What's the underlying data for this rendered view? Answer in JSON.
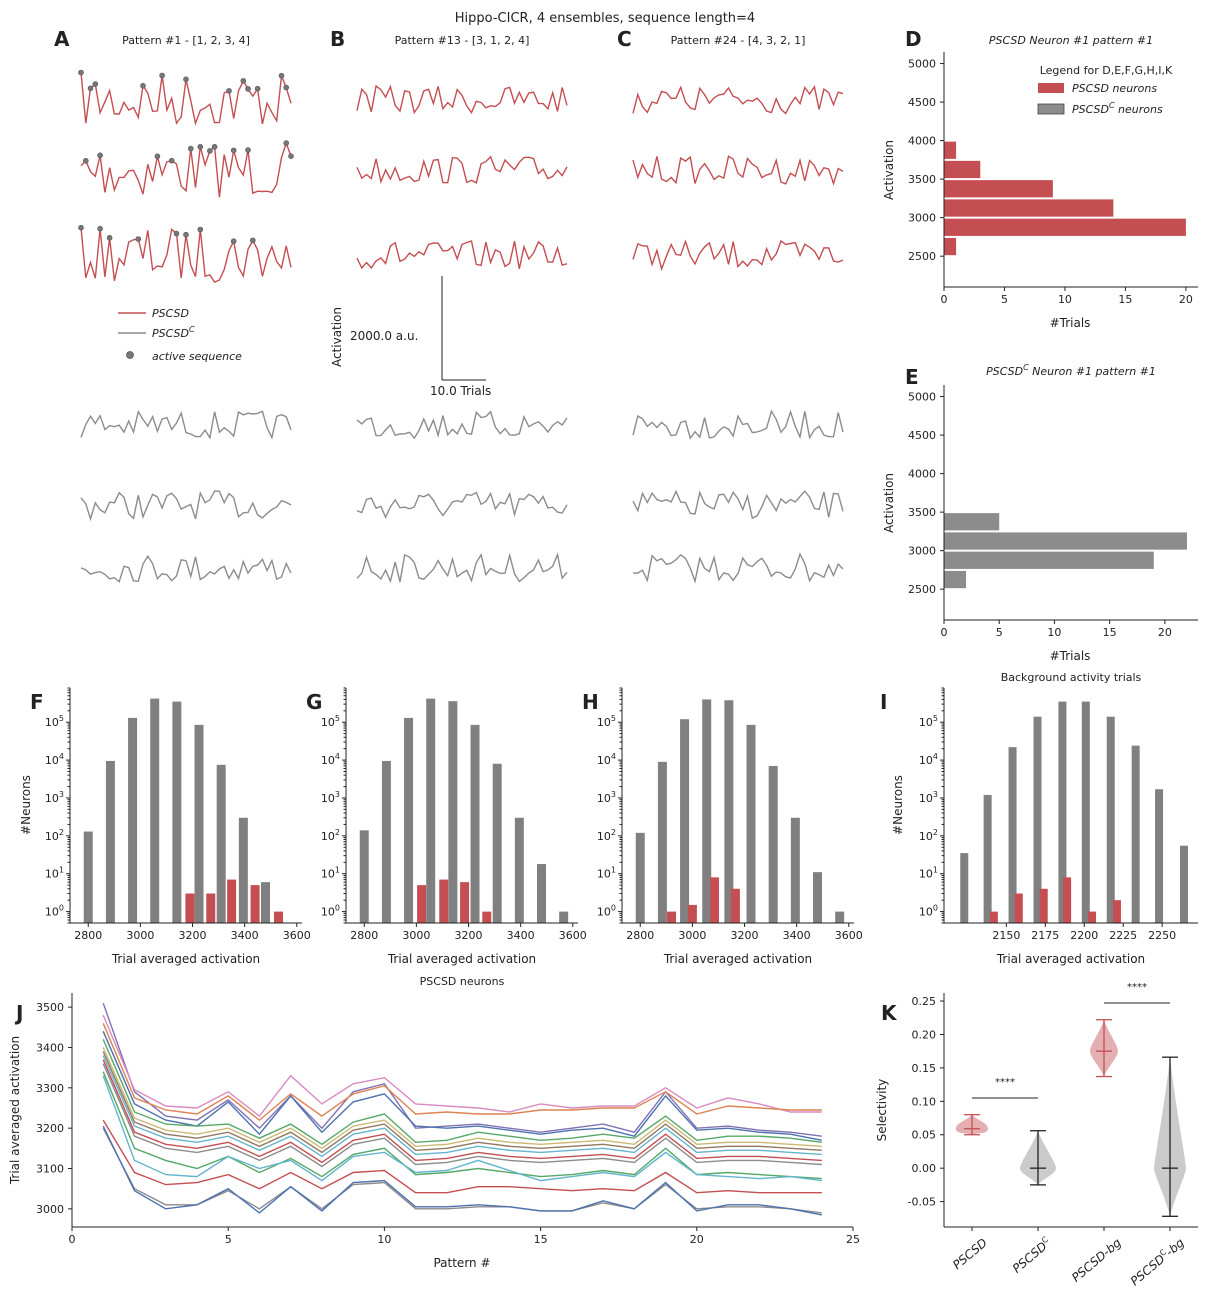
{
  "figure": {
    "title": "Hippo-CICR, 4 ensembles, sequence length=4",
    "panel_letters": [
      "A",
      "B",
      "C",
      "D",
      "E",
      "F",
      "G",
      "H",
      "I",
      "J",
      "K"
    ],
    "colors": {
      "pscsd": "#c44e52",
      "pscsdc": "#8c8c8c",
      "active_marker": "#777777"
    }
  },
  "panelA": {
    "title": "Pattern #1 - [1, 2, 3, 4]",
    "legend": [
      {
        "label": "PSCSD",
        "sup": "",
        "kind": "line",
        "color": "#c44e52"
      },
      {
        "label": "PSCSD",
        "sup": "C",
        "kind": "line",
        "color": "#8c8c8c"
      },
      {
        "label": "active sequence",
        "sup": "",
        "kind": "dot",
        "color": "#777777"
      }
    ]
  },
  "panelB": {
    "title": "Pattern #13 - [3, 1, 2, 4]",
    "ylabel": "Activation",
    "scale_y": "2000.0 a.u.",
    "scale_x": "10.0 Trials"
  },
  "panelC": {
    "title": "Pattern #24 - [4, 3, 2, 1]"
  },
  "panelD": {
    "title": "PSCSD Neuron #1 pattern #1",
    "xlabel": "#Trials",
    "ylabel": "Activation",
    "legend_title": "Legend for D,E,F,G,H,I,K",
    "legend": [
      {
        "label": "PSCSD neurons",
        "sup": "",
        "color": "#c44e52"
      },
      {
        "label": "PSCSD",
        "sup": "C",
        "suffix": " neurons",
        "color": "#8c8c8c"
      }
    ]
  },
  "panelE": {
    "title_prefix": "PSCSD",
    "title_sup": "C",
    "title_suffix": " Neuron #1 pattern #1",
    "xlabel": "#Trials",
    "ylabel": "Activation"
  },
  "panelFGH": {
    "xlabel": "Trial averaged activation",
    "ylabel": "#Neurons"
  },
  "panelI": {
    "title": "Background activity trials",
    "xlabel": "Trial averaged activation",
    "ylabel": "#Neurons"
  },
  "panelJ": {
    "title": "PSCSD neurons",
    "xlabel": "Pattern #",
    "ylabel": "Trial averaged activation"
  },
  "panelK": {
    "ylabel": "Selectivity",
    "categories": [
      {
        "label": "PSCSD",
        "sup": ""
      },
      {
        "label": "PSCSD",
        "sup": "C"
      },
      {
        "label": "PSCSD-bg",
        "sup": ""
      },
      {
        "label": "PSCSD",
        "sup": "C",
        "suffix": "-bg"
      }
    ],
    "significance": [
      "****",
      "****"
    ]
  },
  "chart_data": [
    {
      "panel": "D",
      "type": "bar",
      "orientation": "horizontal",
      "title": "PSCSD Neuron #1 pattern #1",
      "xlabel": "#Trials",
      "ylabel": "Activation",
      "xlim": [
        0,
        21
      ],
      "ylim": [
        2100,
        5150
      ],
      "xticks": [
        0,
        5,
        10,
        15,
        20
      ],
      "yticks": [
        2500,
        3000,
        3500,
        4000,
        4500,
        5000
      ],
      "bins": [
        [
          2500,
          2750
        ],
        [
          2750,
          3000
        ],
        [
          3000,
          3250
        ],
        [
          3250,
          3500
        ],
        [
          3500,
          3750
        ],
        [
          3750,
          4000
        ]
      ],
      "counts": [
        1,
        20,
        14,
        9,
        3,
        1
      ],
      "series_name": "PSCSD neurons",
      "color": "#c44e52"
    },
    {
      "panel": "E",
      "type": "bar",
      "orientation": "horizontal",
      "title": "PSCSDC Neuron #1 pattern #1",
      "xlabel": "#Trials",
      "ylabel": "Activation",
      "xlim": [
        0,
        23
      ],
      "ylim": [
        2100,
        5150
      ],
      "xticks": [
        0,
        5,
        10,
        15,
        20
      ],
      "yticks": [
        2500,
        3000,
        3500,
        4000,
        4500,
        5000
      ],
      "bins": [
        [
          2500,
          2750
        ],
        [
          2750,
          3000
        ],
        [
          3000,
          3250
        ],
        [
          3250,
          3500
        ]
      ],
      "counts": [
        2,
        19,
        22,
        5
      ],
      "color": "#8c8c8c"
    },
    {
      "panel": "F",
      "type": "bar",
      "scale_y": "log",
      "xlabel": "Trial averaged activation",
      "ylabel": "#Neurons",
      "xlim": [
        2730,
        3620
      ],
      "ylim": [
        0.5,
        800000
      ],
      "xticks": [
        2800,
        3000,
        3200,
        3400,
        3600
      ],
      "gray": {
        "x": [
          2800,
          2885,
          2970,
          3055,
          3140,
          3225,
          3310,
          3395,
          3480
        ],
        "values": [
          130,
          9500,
          130000,
          420000,
          350000,
          85000,
          7500,
          300,
          6
        ]
      },
      "red": {
        "x": [
          3190,
          3270,
          3350,
          3440,
          3530
        ],
        "values": [
          3,
          3,
          7,
          5,
          1
        ]
      }
    },
    {
      "panel": "G",
      "type": "bar",
      "scale_y": "log",
      "xlabel": "Trial averaged activation",
      "ylabel": "#Neurons",
      "xlim": [
        2730,
        3620
      ],
      "ylim": [
        0.5,
        800000
      ],
      "xticks": [
        2800,
        3000,
        3200,
        3400,
        3600
      ],
      "gray": {
        "x": [
          2800,
          2885,
          2970,
          3055,
          3140,
          3225,
          3310,
          3395,
          3480,
          3565
        ],
        "values": [
          140,
          9500,
          130000,
          420000,
          360000,
          85000,
          8000,
          300,
          18,
          1
        ]
      },
      "red": {
        "x": [
          3020,
          3105,
          3185,
          3270
        ],
        "values": [
          5,
          7,
          6,
          1
        ]
      }
    },
    {
      "panel": "H",
      "type": "bar",
      "scale_y": "log",
      "xlabel": "Trial averaged activation",
      "ylabel": "#Neurons",
      "xlim": [
        2730,
        3620
      ],
      "ylim": [
        0.5,
        800000
      ],
      "xticks": [
        2800,
        3000,
        3200,
        3400,
        3600
      ],
      "gray": {
        "x": [
          2800,
          2885,
          2970,
          3055,
          3140,
          3225,
          3310,
          3395,
          3480,
          3565
        ],
        "values": [
          120,
          9000,
          120000,
          400000,
          380000,
          85000,
          7000,
          300,
          11,
          1
        ]
      },
      "red": {
        "x": [
          2920,
          3000,
          3085,
          3165
        ],
        "values": [
          1,
          1.5,
          8,
          4
        ]
      }
    },
    {
      "panel": "I",
      "type": "bar",
      "scale_y": "log",
      "title": "Background activity trials",
      "xlabel": "Trial averaged activation",
      "ylabel": "#Neurons",
      "xlim": [
        2110,
        2273
      ],
      "ylim": [
        0.5,
        800000
      ],
      "xticks": [
        2150,
        2175,
        2200,
        2225,
        2250
      ],
      "gray": {
        "x": [
          2123,
          2138,
          2154,
          2170,
          2186,
          2201,
          2217,
          2233,
          2248,
          2264
        ],
        "values": [
          35,
          1200,
          22000,
          140000,
          350000,
          350000,
          140000,
          24000,
          1700,
          55
        ]
      },
      "red": {
        "x": [
          2142,
          2158,
          2174,
          2189,
          2205,
          2221
        ],
        "values": [
          1,
          3,
          4,
          8,
          1,
          2
        ]
      }
    },
    {
      "panel": "J",
      "type": "line",
      "title": "PSCSD neurons",
      "xlabel": "Pattern #",
      "ylabel": "Trial averaged activation",
      "xlim": [
        0,
        25
      ],
      "ylim": [
        2955,
        3535
      ],
      "xticks": [
        0,
        5,
        10,
        15,
        20,
        25
      ],
      "yticks": [
        3000,
        3100,
        3200,
        3300,
        3400,
        3500
      ],
      "x": [
        1,
        2,
        3,
        4,
        5,
        6,
        7,
        8,
        9,
        10,
        11,
        12,
        13,
        14,
        15,
        16,
        17,
        18,
        19,
        20,
        21,
        22,
        23,
        24
      ],
      "series": [
        {
          "color": "#8172b3",
          "values": [
            3510,
            3290,
            3230,
            3220,
            3270,
            3200,
            3280,
            3200,
            3290,
            3310,
            3200,
            3205,
            3210,
            3200,
            3190,
            3200,
            3210,
            3190,
            3290,
            3200,
            3205,
            3195,
            3190,
            3180
          ]
        },
        {
          "color": "#da8bc3",
          "values": [
            3480,
            3295,
            3255,
            3250,
            3290,
            3230,
            3330,
            3260,
            3310,
            3325,
            3260,
            3255,
            3250,
            3240,
            3260,
            3250,
            3255,
            3255,
            3300,
            3250,
            3275,
            3260,
            3240,
            3240
          ]
        },
        {
          "color": "#dd8452",
          "values": [
            3460,
            3275,
            3245,
            3235,
            3280,
            3220,
            3285,
            3230,
            3285,
            3305,
            3235,
            3240,
            3235,
            3235,
            3245,
            3245,
            3250,
            3250,
            3290,
            3235,
            3255,
            3250,
            3245,
            3245
          ]
        },
        {
          "color": "#4c72b0",
          "values": [
            3440,
            3260,
            3220,
            3205,
            3265,
            3185,
            3280,
            3190,
            3265,
            3285,
            3205,
            3200,
            3205,
            3195,
            3185,
            3195,
            3200,
            3180,
            3280,
            3195,
            3200,
            3190,
            3185,
            3170
          ]
        },
        {
          "color": "#55a868",
          "values": [
            3420,
            3240,
            3210,
            3205,
            3210,
            3175,
            3210,
            3160,
            3215,
            3235,
            3165,
            3170,
            3190,
            3180,
            3170,
            3175,
            3185,
            3175,
            3230,
            3170,
            3180,
            3180,
            3175,
            3165
          ]
        },
        {
          "color": "#ccb974",
          "values": [
            3400,
            3225,
            3195,
            3185,
            3200,
            3165,
            3200,
            3150,
            3205,
            3220,
            3155,
            3160,
            3175,
            3165,
            3160,
            3165,
            3170,
            3160,
            3220,
            3160,
            3165,
            3165,
            3160,
            3155
          ]
        },
        {
          "color": "#937860",
          "values": [
            3390,
            3215,
            3185,
            3175,
            3190,
            3155,
            3190,
            3140,
            3195,
            3210,
            3145,
            3150,
            3165,
            3155,
            3150,
            3155,
            3160,
            3150,
            3210,
            3150,
            3155,
            3155,
            3150,
            3145
          ]
        },
        {
          "color": "#64b5cd",
          "values": [
            3380,
            3205,
            3175,
            3165,
            3180,
            3145,
            3180,
            3130,
            3185,
            3200,
            3135,
            3140,
            3155,
            3145,
            3140,
            3145,
            3150,
            3140,
            3200,
            3140,
            3145,
            3145,
            3140,
            3135
          ]
        },
        {
          "color": "#c44e52",
          "values": [
            3370,
            3190,
            3160,
            3150,
            3165,
            3130,
            3165,
            3115,
            3170,
            3185,
            3120,
            3125,
            3140,
            3130,
            3125,
            3130,
            3135,
            3125,
            3185,
            3125,
            3130,
            3130,
            3125,
            3120
          ]
        },
        {
          "color": "#8c8c8c",
          "values": [
            3360,
            3180,
            3150,
            3140,
            3155,
            3120,
            3155,
            3105,
            3160,
            3175,
            3110,
            3115,
            3130,
            3120,
            3115,
            3120,
            3125,
            3115,
            3175,
            3115,
            3120,
            3120,
            3115,
            3110
          ]
        },
        {
          "color": "#55a868",
          "values": [
            3340,
            3150,
            3120,
            3100,
            3130,
            3090,
            3125,
            3080,
            3135,
            3150,
            3085,
            3090,
            3100,
            3090,
            3080,
            3085,
            3095,
            3085,
            3150,
            3085,
            3090,
            3085,
            3080,
            3075
          ]
        },
        {
          "color": "#64b5cd",
          "values": [
            3330,
            3120,
            3085,
            3080,
            3130,
            3100,
            3120,
            3070,
            3130,
            3140,
            3090,
            3095,
            3120,
            3095,
            3070,
            3080,
            3090,
            3080,
            3140,
            3085,
            3080,
            3075,
            3080,
            3070
          ]
        },
        {
          "color": "#c44e52",
          "values": [
            3220,
            3090,
            3060,
            3065,
            3085,
            3050,
            3090,
            3050,
            3090,
            3095,
            3040,
            3040,
            3055,
            3055,
            3050,
            3045,
            3050,
            3045,
            3090,
            3040,
            3045,
            3040,
            3040,
            3040
          ]
        },
        {
          "color": "#8c8c8c",
          "values": [
            3200,
            3050,
            3010,
            3010,
            3045,
            3000,
            3055,
            3000,
            3060,
            3065,
            3000,
            3000,
            3005,
            3005,
            2995,
            2995,
            3015,
            3000,
            3060,
            3000,
            3005,
            3005,
            3000,
            2990
          ]
        },
        {
          "color": "#4c72b0",
          "values": [
            3205,
            3045,
            3000,
            3010,
            3050,
            2990,
            3055,
            2995,
            3065,
            3070,
            3005,
            3005,
            3010,
            3005,
            2995,
            2995,
            3020,
            3000,
            3065,
            2995,
            3010,
            3010,
            3000,
            2985
          ]
        }
      ]
    },
    {
      "panel": "K",
      "type": "violin",
      "ylabel": "Selectivity",
      "ylim": [
        -0.088,
        0.262
      ],
      "yticks": [
        -0.05,
        0.0,
        0.05,
        0.1,
        0.15,
        0.2,
        0.25
      ],
      "categories": [
        "PSCSD",
        "PSCSDC",
        "PSCSD-bg",
        "PSCSDC-bg"
      ],
      "stats": [
        {
          "min": 0.05,
          "median": 0.059,
          "max": 0.08,
          "color": "#c44e52"
        },
        {
          "min": -0.025,
          "median": 0.0,
          "max": 0.056,
          "color": "#8c8c8c"
        },
        {
          "min": 0.137,
          "median": 0.175,
          "max": 0.222,
          "color": "#c44e52"
        },
        {
          "min": -0.072,
          "median": 0.0,
          "max": 0.166,
          "color": "#8c8c8c"
        }
      ]
    },
    {
      "panel": "A-C",
      "type": "line",
      "note_free": true,
      "trials": 45
    }
  ]
}
